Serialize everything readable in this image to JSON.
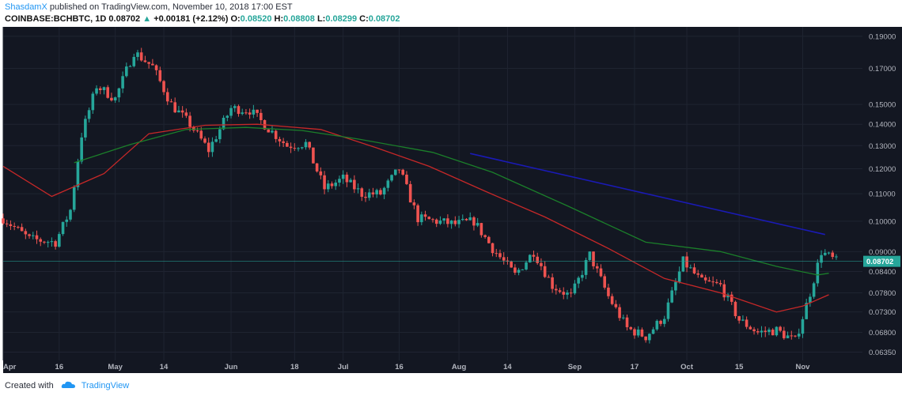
{
  "header": {
    "author": "ShasdamX",
    "published_text": "published on TradingView.com, November 10, 2018 17:00 EST",
    "symbol": "COINBASE:BCHBTC, 1D",
    "last": "0.08702",
    "change_arrow": "▲",
    "change": "+0.00181 (+2.12%)",
    "o_label": "O:",
    "o_value": "0.08520",
    "h_label": "H:",
    "h_value": "0.08808",
    "l_label": "L:",
    "l_value": "0.08299",
    "c_label": "C:",
    "c_value": "0.08702"
  },
  "footer": {
    "created_with": "Created with",
    "brand": "TradingView",
    "logo_icon": "tradingview-cloud-icon"
  },
  "colors": {
    "background": "#131722",
    "grid": "#1f2431",
    "up": "#26a69a",
    "down": "#ef5350",
    "ma_red": "#c62828",
    "ma_green": "#1b7f2a",
    "trend_blue": "#1a1ab5",
    "last_price_line": "#26a69a",
    "axis_text": "#b2b5be"
  },
  "chart_data": {
    "type": "candlestick",
    "y_scale": "log",
    "ylim": [
      0.0617,
      0.1963
    ],
    "xlim_dates": [
      "2018-04-01",
      "2018-11-17"
    ],
    "y_ticks": [
      "0.19000",
      "0.17000",
      "0.15000",
      "0.14000",
      "0.13000",
      "0.12000",
      "0.11000",
      "0.10000",
      "0.09000",
      "0.08400",
      "0.07800",
      "0.07300",
      "0.06800",
      "0.06350"
    ],
    "x_ticks": [
      {
        "label": "Apr",
        "date": "2018-04-01"
      },
      {
        "label": "16",
        "date": "2018-04-16"
      },
      {
        "label": "May",
        "date": "2018-05-01"
      },
      {
        "label": "14",
        "date": "2018-05-14"
      },
      {
        "label": "Jun",
        "date": "2018-06-01"
      },
      {
        "label": "18",
        "date": "2018-06-18"
      },
      {
        "label": "Jul",
        "date": "2018-07-01"
      },
      {
        "label": "16",
        "date": "2018-07-16"
      },
      {
        "label": "Aug",
        "date": "2018-08-01"
      },
      {
        "label": "14",
        "date": "2018-08-14"
      },
      {
        "label": "Sep",
        "date": "2018-09-01"
      },
      {
        "label": "17",
        "date": "2018-09-17"
      },
      {
        "label": "Oct",
        "date": "2018-10-01"
      },
      {
        "label": "15",
        "date": "2018-10-15"
      },
      {
        "label": "Nov",
        "date": "2018-11-01"
      }
    ],
    "last_price_label": "0.08702",
    "last_price": 0.08702,
    "close_series": {
      "dates": [
        "2018-04-01",
        "2018-04-08",
        "2018-04-15",
        "2018-04-19",
        "2018-04-22",
        "2018-04-26",
        "2018-05-01",
        "2018-05-06",
        "2018-05-11",
        "2018-05-16",
        "2018-05-21",
        "2018-05-26",
        "2018-06-01",
        "2018-06-06",
        "2018-06-11",
        "2018-06-16",
        "2018-06-21",
        "2018-06-26",
        "2018-07-01",
        "2018-07-06",
        "2018-07-11",
        "2018-07-16",
        "2018-07-21",
        "2018-07-26",
        "2018-07-31",
        "2018-08-05",
        "2018-08-10",
        "2018-08-16",
        "2018-08-21",
        "2018-08-26",
        "2018-08-31",
        "2018-09-05",
        "2018-09-10",
        "2018-09-15",
        "2018-09-20",
        "2018-09-25",
        "2018-09-30",
        "2018-10-05",
        "2018-10-10",
        "2018-10-15",
        "2018-10-20",
        "2018-10-25",
        "2018-10-30",
        "2018-11-03",
        "2018-11-06",
        "2018-11-10"
      ],
      "values": [
        0.101,
        0.094,
        0.093,
        0.104,
        0.135,
        0.16,
        0.153,
        0.18,
        0.171,
        0.15,
        0.14,
        0.128,
        0.148,
        0.147,
        0.138,
        0.13,
        0.131,
        0.112,
        0.116,
        0.11,
        0.11,
        0.12,
        0.101,
        0.1,
        0.099,
        0.1,
        0.091,
        0.083,
        0.09,
        0.08,
        0.077,
        0.089,
        0.077,
        0.069,
        0.067,
        0.072,
        0.087,
        0.081,
        0.08,
        0.071,
        0.068,
        0.0685,
        0.066,
        0.078,
        0.09,
        0.08702
      ]
    },
    "series": [
      {
        "kind": "moving-average",
        "color": "red",
        "dates": [
          "2018-04-01",
          "2018-04-14",
          "2018-04-28",
          "2018-05-10",
          "2018-05-25",
          "2018-06-08",
          "2018-06-25",
          "2018-07-10",
          "2018-07-24",
          "2018-08-08",
          "2018-08-24",
          "2018-09-10",
          "2018-09-25",
          "2018-10-10",
          "2018-10-25",
          "2018-11-01",
          "2018-11-08"
        ],
        "values": [
          0.121,
          0.109,
          0.118,
          0.1355,
          0.1395,
          0.14,
          0.1375,
          0.129,
          0.121,
          0.111,
          0.1015,
          0.091,
          0.082,
          0.078,
          0.073,
          0.0745,
          0.0775
        ]
      },
      {
        "kind": "moving-average",
        "color": "green",
        "dates": [
          "2018-04-20",
          "2018-05-05",
          "2018-05-20",
          "2018-06-05",
          "2018-06-20",
          "2018-07-05",
          "2018-07-25",
          "2018-08-10",
          "2018-08-30",
          "2018-09-20",
          "2018-10-10",
          "2018-10-25",
          "2018-11-05",
          "2018-11-08"
        ],
        "values": [
          0.1225,
          0.1305,
          0.1375,
          0.1385,
          0.137,
          0.133,
          0.127,
          0.1185,
          0.1055,
          0.093,
          0.09,
          0.0855,
          0.083,
          0.0835
        ]
      },
      {
        "kind": "trendline",
        "color": "blue",
        "dates": [
          "2018-08-04",
          "2018-11-07"
        ],
        "values": [
          0.1265,
          0.0955
        ]
      }
    ]
  }
}
